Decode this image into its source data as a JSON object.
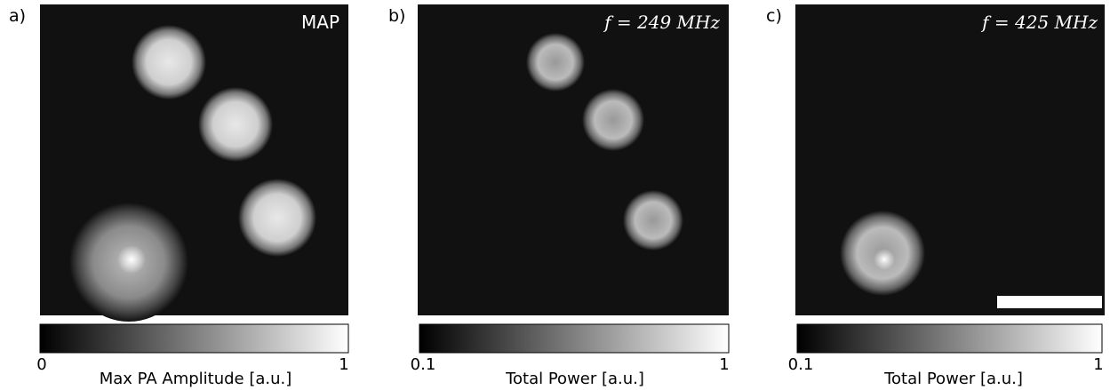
{
  "panels": [
    {
      "label": "a)",
      "overlay": "MAP",
      "colorbar": {
        "min": "0",
        "max": "1",
        "title": "Max PA Amplitude [a.u.]"
      }
    },
    {
      "label": "b)",
      "overlay": "f = 249 MHz",
      "colorbar": {
        "min": "0.1",
        "max": "1",
        "title": "Total Power [a.u.]"
      }
    },
    {
      "label": "c)",
      "overlay": "f = 425 MHz",
      "colorbar": {
        "min": "0.1",
        "max": "1",
        "title": "Total Power [a.u.]"
      }
    }
  ]
}
